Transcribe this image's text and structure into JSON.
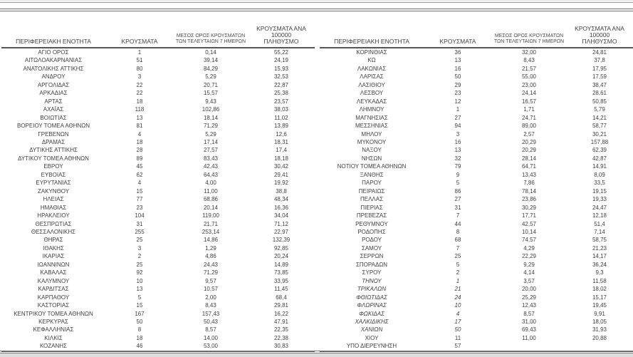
{
  "report": {
    "columns": {
      "region": "ΠΕΡΙΦΕΡΕΙΑΚΗ ΕΝΟΤΗΤΑ",
      "cases": "ΚΡΟΥΣΜΑΤΑ",
      "avg7_line1": "ΜΕΣΟΣ ΟΡΟΣ ΚΡΟΥΣΜΑΤΩΝ",
      "avg7_line2": "ΤΩΝ ΤΕΛΕΥΤΑΙΩΝ 7 ΗΜΕΡΩΝ",
      "per100k_line1": "ΚΡΟΥΣΜΑΤΑ ΑΝΑ 100000",
      "per100k_line2": "ΠΛΗΘΥΣΜΟ"
    },
    "left_table": {
      "rows": [
        [
          "ΑΓΙΟ ΟΡΟΣ",
          "1",
          "0,14",
          "55,22"
        ],
        [
          "ΑΙΤΩΛΟΑΚΑΡΝΑΝΙΑΣ",
          "51",
          "39,14",
          "24,19"
        ],
        [
          "ΑΝΑΤΟΛΙΚΗΣ ΑΤΤΙΚΗΣ",
          "80",
          "84,29",
          "15,93"
        ],
        [
          "ΑΝΔΡΟΥ",
          "3",
          "5,29",
          "32,53"
        ],
        [
          "ΑΡΓΟΛΙΔΑΣ",
          "22",
          "20,71",
          "22,87"
        ],
        [
          "ΑΡΚΑΔΙΑΣ",
          "22",
          "15,57",
          "25,38"
        ],
        [
          "ΑΡΤΑΣ",
          "18",
          "9,43",
          "23,57"
        ],
        [
          "ΑΧΑΪΑΣ",
          "118",
          "102,86",
          "38,03"
        ],
        [
          "ΒΟΙΩΤΙΑΣ",
          "13",
          "18,14",
          "11,02"
        ],
        [
          "ΒΟΡΕΙΟΥ ΤΟΜΕΑ ΑΘΗΝΩΝ",
          "81",
          "71,29",
          "13,89"
        ],
        [
          "ΓΡΕΒΕΝΩΝ",
          "4",
          "5,29",
          "12,6"
        ],
        [
          "ΔΡΑΜΑΣ",
          "18",
          "17,14",
          "18,31"
        ],
        [
          "ΔΥΤΙΚΗΣ ΑΤΤΙΚΗΣ",
          "28",
          "27,57",
          "17,4"
        ],
        [
          "ΔΥΤΙΚΟΥ ΤΟΜΕΑ ΑΘΗΝΩΝ",
          "89",
          "83,43",
          "18,18"
        ],
        [
          "ΕΒΡΟΥ",
          "45",
          "42,43",
          "30,42"
        ],
        [
          "ΕΥΒΟΙΑΣ",
          "62",
          "64,43",
          "29,41"
        ],
        [
          "ΕΥΡΥΤΑΝΙΑΣ",
          "4",
          "4,00",
          "19,92"
        ],
        [
          "ΖΑΚΥΝΘΟΥ",
          "15",
          "11,00",
          "38,8"
        ],
        [
          "ΗΛΕΙΑΣ",
          "77",
          "68,86",
          "48,34"
        ],
        [
          "ΗΜΑΘΙΑΣ",
          "23",
          "20,14",
          "16,36"
        ],
        [
          "ΗΡΑΚΛΕΙΟΥ",
          "104",
          "119,00",
          "34,04"
        ],
        [
          "ΘΕΣΠΡΩΤΙΑΣ",
          "31",
          "21,71",
          "71,12"
        ],
        [
          "ΘΕΣΣΑΛΟΝΙΚΗΣ",
          "255",
          "253,14",
          "22,97"
        ],
        [
          "ΘΗΡΑΣ",
          "25",
          "14,86",
          "132,39"
        ],
        [
          "ΙΘΑΚΗΣ",
          "3",
          "1,29",
          "92,85"
        ],
        [
          "ΙΚΑΡΙΑΣ",
          "2",
          "4,86",
          "20,24"
        ],
        [
          "ΙΩΑΝΝΙΝΩΝ",
          "25",
          "24,43",
          "14,89"
        ],
        [
          "ΚΑΒΑΛΑΣ",
          "92",
          "71,29",
          "73,85"
        ],
        [
          "ΚΑΛΥΜΝΟΥ",
          "10",
          "9,57",
          "33,95"
        ],
        [
          "ΚΑΡΔΙΤΣΑΣ",
          "13",
          "10,57",
          "11,45"
        ],
        [
          "ΚΑΡΠΑΘΟΥ",
          "5",
          "2,00",
          "68,4"
        ],
        [
          "ΚΑΣΤΟΡΙΑΣ",
          "15",
          "8,43",
          "29,81"
        ],
        [
          "ΚΕΝΤΡΙΚΟΥ ΤΟΜΕΑ ΑΘΗΝΩΝ",
          "167",
          "157,43",
          "16,22"
        ],
        [
          "ΚΕΡΚΥΡΑΣ",
          "50",
          "50,43",
          "47,91"
        ],
        [
          "ΚΕΦΑΛΛΗΝΙΑΣ",
          "8",
          "8,57",
          "22,35"
        ],
        [
          "ΚΙΛΚΙΣ",
          "18",
          "14,00",
          "22,38"
        ],
        [
          "ΚΟΖΑΝΗΣ",
          "46",
          "53,00",
          "30,83"
        ]
      ],
      "italic_row_indices": []
    },
    "right_table": {
      "rows": [
        [
          "ΚΟΡΙΝΘΙΑΣ",
          "36",
          "32,00",
          "24,81"
        ],
        [
          "ΚΩ",
          "13",
          "8,43",
          "37,8"
        ],
        [
          "ΛΑΚΩΝΙΑΣ",
          "16",
          "21,57",
          "17,95"
        ],
        [
          "ΛΑΡΙΣΑΣ",
          "50",
          "55,00",
          "17,59"
        ],
        [
          "ΛΑΣΙΘΙΟΥ",
          "29",
          "23,00",
          "38,47"
        ],
        [
          "ΛΕΣΒΟΥ",
          "23",
          "24,14",
          "28,61"
        ],
        [
          "ΛΕΥΚΑΔΑΣ",
          "12",
          "16,57",
          "50,85"
        ],
        [
          "ΛΗΜΝΟΥ",
          "1",
          "1,71",
          "5,79"
        ],
        [
          "ΜΑΓΝΗΣΙΑΣ",
          "27",
          "24,71",
          "14,21"
        ],
        [
          "ΜΕΣΣΗΝΙΑΣ",
          "94",
          "89,00",
          "58,77"
        ],
        [
          "ΜΗΛΟΥ",
          "3",
          "2,57",
          "30,21"
        ],
        [
          "ΜΥΚΟΝΟΥ",
          "16",
          "20,29",
          "157,88"
        ],
        [
          "ΝΑΞΟΥ",
          "13",
          "20,29",
          "62,39"
        ],
        [
          "ΝΗΣΩΝ",
          "32",
          "28,14",
          "42,87"
        ],
        [
          "ΝΟΤΙΟΥ ΤΟΜΕΑ ΑΘΗΝΩΝ",
          "79",
          "64,71",
          "14,91"
        ],
        [
          "ΞΑΝΘΗΣ",
          "9",
          "13,43",
          "8,09"
        ],
        [
          "ΠΑΡΟΥ",
          "5",
          "7,86",
          "33,5"
        ],
        [
          "ΠΕΙΡΑΙΩΣ",
          "86",
          "78,14",
          "19,15"
        ],
        [
          "ΠΕΛΛΑΣ",
          "27",
          "23,86",
          "19,33"
        ],
        [
          "ΠΙΕΡΙΑΣ",
          "31",
          "30,29",
          "24,47"
        ],
        [
          "ΠΡΕΒΕΖΑΣ",
          "7",
          "17,71",
          "12,18"
        ],
        [
          "ΡΕΘΥΜΝΟΥ",
          "44",
          "42,57",
          "51,4"
        ],
        [
          "ΡΟΔΟΠΗΣ",
          "8",
          "10,14",
          "7,14"
        ],
        [
          "ΡΟΔΟΥ",
          "68",
          "74,57",
          "58,75"
        ],
        [
          "ΣΑΜΟΥ",
          "7",
          "4,29",
          "21,23"
        ],
        [
          "ΣΕΡΡΩΝ",
          "25",
          "22,29",
          "14,17"
        ],
        [
          "ΣΠΟΡΑΔΩΝ",
          "5",
          "9,29",
          "36,24"
        ],
        [
          "ΣΥΡΟΥ",
          "2",
          "4,14",
          "9,3"
        ],
        [
          "ΤΗΝΟΥ",
          "1",
          "3,57",
          "11,58"
        ],
        [
          "ΤΡΙΚΑΛΩΝ",
          "21",
          "20,00",
          "18,02"
        ],
        [
          "ΦΘΙΩΤΙΔΑΣ",
          "24",
          "25,29",
          "15,17"
        ],
        [
          "ΦΛΩΡΙΝΑΣ",
          "10",
          "12,43",
          "19,45"
        ],
        [
          "ΦΩΚΙΔΑΣ",
          "4",
          "8,57",
          "9,91"
        ],
        [
          "ΧΑΛΚΙΔΙΚΗΣ",
          "17",
          "31,00",
          "18,05"
        ],
        [
          "ΧΑΝΙΩΝ",
          "50",
          "69,43",
          "31,93"
        ],
        [
          "ΧΙΟΥ",
          "11",
          "11,00",
          "20,88"
        ],
        [
          "ΥΠΟ ΔΙΕΡΕΥΝΗΣΗ",
          "57",
          "",
          ""
        ]
      ],
      "italic_row_indices": [
        28,
        29,
        30,
        31,
        32,
        33,
        34
      ]
    },
    "colors": {
      "text": "#3f3f3f",
      "border_dark": "#565656",
      "border_light": "#9a9a9a"
    }
  }
}
